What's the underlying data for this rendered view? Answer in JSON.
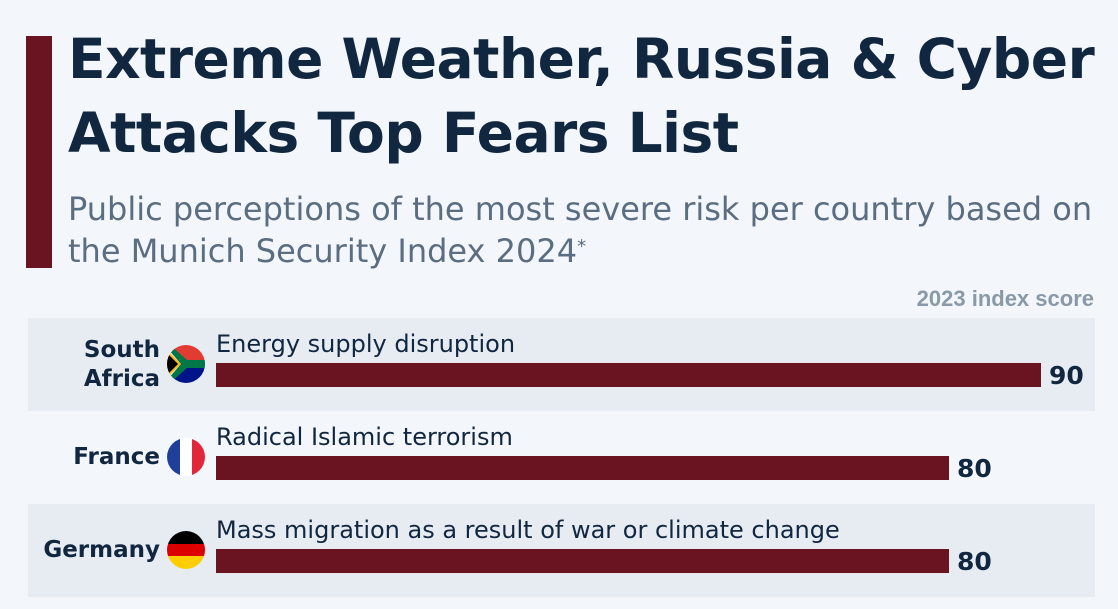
{
  "title": "Extreme Weather, Russia & Cyber Attacks Top Fears List",
  "subtitle": "Public perceptions of the most severe risk per country based on the Munich Security Index 2024",
  "subtitle_footnote_mark": "*",
  "score_column_label": "2023 index score",
  "colors": {
    "accent": "#6b1421",
    "text": "#11263f",
    "subtext": "#5b6d80"
  },
  "chart_data": {
    "type": "bar",
    "orientation": "horizontal",
    "categories": [
      "South\nAfrica",
      "France",
      "Germany"
    ],
    "risks": [
      "Energy supply disruption",
      "Radical Islamic terrorism",
      "Mass migration as a result of war or climate change"
    ],
    "values": [
      90,
      80,
      80
    ],
    "value_labels": [
      "90",
      "80",
      "80"
    ],
    "flags": [
      "south-africa-flag-icon",
      "france-flag-icon",
      "germany-flag-icon"
    ],
    "xlim": [
      0,
      90
    ]
  }
}
